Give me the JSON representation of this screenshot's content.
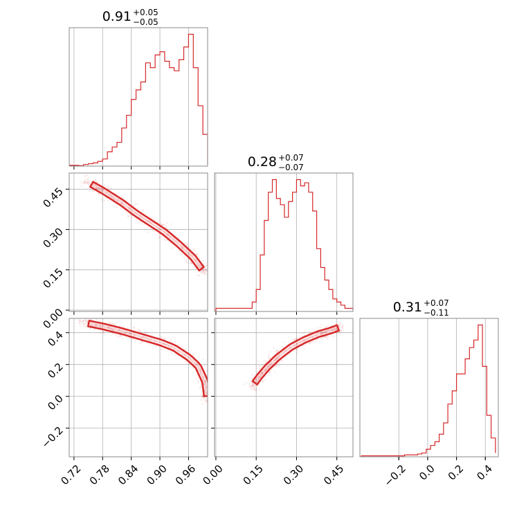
{
  "chart_data": {
    "type": "corner",
    "color": "#d62728",
    "panels": [
      {
        "id": "hist-p0",
        "type": "histogram",
        "title": {
          "median": "0.91",
          "plus": "+0.05",
          "minus": "−0.05"
        },
        "xlim": [
          0.71,
          1.0
        ],
        "grid": true,
        "bin_edges": [
          0.71,
          0.72,
          0.73,
          0.74,
          0.75,
          0.76,
          0.77,
          0.78,
          0.79,
          0.8,
          0.81,
          0.82,
          0.83,
          0.84,
          0.85,
          0.86,
          0.87,
          0.88,
          0.89,
          0.9,
          0.91,
          0.92,
          0.93,
          0.94,
          0.95,
          0.96,
          0.97,
          0.98,
          0.99,
          1.0
        ],
        "counts": [
          0.5,
          0.5,
          0.3,
          1,
          1.5,
          2,
          3,
          4.5,
          9,
          12,
          15,
          24,
          32,
          42,
          48,
          53,
          65,
          62,
          70,
          72,
          66,
          62,
          60,
          67,
          75,
          83,
          62,
          38,
          20,
          1
        ]
      },
      {
        "id": "hist-p1",
        "type": "histogram",
        "title": {
          "median": "0.28",
          "plus": "+0.07",
          "minus": "−0.07"
        },
        "xlim": [
          -0.005,
          0.51
        ],
        "grid": true,
        "bin_edges": [
          0.0,
          0.015,
          0.03,
          0.045,
          0.06,
          0.075,
          0.09,
          0.105,
          0.12,
          0.135,
          0.15,
          0.165,
          0.18,
          0.195,
          0.21,
          0.225,
          0.24,
          0.255,
          0.27,
          0.285,
          0.3,
          0.315,
          0.33,
          0.345,
          0.36,
          0.375,
          0.39,
          0.405,
          0.42,
          0.435,
          0.45,
          0.465,
          0.48,
          0.495,
          0.51
        ],
        "counts": [
          1,
          1,
          1,
          1,
          1,
          1,
          1,
          1,
          1,
          3,
          7,
          18,
          29,
          38,
          42,
          36,
          34,
          30,
          35,
          38,
          42,
          40,
          41,
          38,
          32,
          20,
          14,
          10,
          7,
          4,
          3,
          2,
          1,
          1
        ]
      },
      {
        "id": "hist-p2",
        "type": "histogram",
        "title": {
          "median": "0.31",
          "plus": "+0.07",
          "minus": "−0.11"
        },
        "xlim": [
          -0.47,
          0.49
        ],
        "grid": true,
        "bin_edges": [
          -0.46,
          -0.43,
          -0.4,
          -0.37,
          -0.34,
          -0.31,
          -0.28,
          -0.25,
          -0.22,
          -0.19,
          -0.16,
          -0.13,
          -0.1,
          -0.07,
          -0.04,
          -0.01,
          0.02,
          0.05,
          0.08,
          0.11,
          0.14,
          0.17,
          0.2,
          0.23,
          0.26,
          0.29,
          0.32,
          0.35,
          0.38,
          0.41,
          0.44,
          0.47
        ],
        "counts": [
          0.5,
          0.5,
          0.5,
          0.5,
          0.5,
          0.5,
          0.5,
          0.5,
          0.5,
          0.5,
          1,
          1,
          1,
          1.5,
          2,
          4,
          6,
          8,
          12,
          18,
          28,
          35,
          44,
          44,
          52,
          58,
          62,
          70,
          48,
          22,
          10,
          2
        ]
      },
      {
        "id": "scatter-p0-p1",
        "type": "contour-scatter",
        "xlim": [
          0.71,
          1.0
        ],
        "ylim": [
          -0.005,
          0.51
        ],
        "grid": true,
        "ridge": [
          [
            0.74,
            0.485
          ],
          [
            0.78,
            0.445
          ],
          [
            0.82,
            0.4
          ],
          [
            0.85,
            0.36
          ],
          [
            0.88,
            0.325
          ],
          [
            0.91,
            0.29
          ],
          [
            0.94,
            0.245
          ],
          [
            0.97,
            0.195
          ],
          [
            0.995,
            0.135
          ]
        ],
        "band": [
          0.7,
          0.32
        ]
      },
      {
        "id": "scatter-p0-p2",
        "type": "contour-scatter",
        "xlim": [
          0.71,
          1.0
        ],
        "ylim": [
          -0.38,
          0.49
        ],
        "grid": true,
        "ridge": [
          [
            0.73,
            0.47
          ],
          [
            0.78,
            0.44
          ],
          [
            0.82,
            0.41
          ],
          [
            0.86,
            0.375
          ],
          [
            0.9,
            0.34
          ],
          [
            0.93,
            0.305
          ],
          [
            0.96,
            0.245
          ],
          [
            0.98,
            0.19
          ],
          [
            0.995,
            0.09
          ],
          [
            1.0,
            -0.04
          ]
        ],
        "band": [
          0.5,
          0.32
        ]
      },
      {
        "id": "scatter-p1-p2",
        "type": "contour-scatter",
        "xlim": [
          -0.005,
          0.51
        ],
        "ylim": [
          -0.38,
          0.49
        ],
        "grid": true,
        "ridge": [
          [
            0.13,
            0.05
          ],
          [
            0.16,
            0.12
          ],
          [
            0.19,
            0.18
          ],
          [
            0.23,
            0.245
          ],
          [
            0.28,
            0.31
          ],
          [
            0.33,
            0.355
          ],
          [
            0.38,
            0.39
          ],
          [
            0.43,
            0.415
          ],
          [
            0.47,
            0.44
          ]
        ],
        "band": [
          0.3,
          0.32
        ]
      }
    ],
    "ticks": {
      "x_p0": [
        "0.72",
        "0.78",
        "0.84",
        "0.90",
        "0.96"
      ],
      "x_p1": [
        "0.00",
        "0.15",
        "0.30",
        "0.45"
      ],
      "x_p2": [
        "−0.2",
        "0.0",
        "0.2",
        "0.4"
      ],
      "y_p1": [
        "0.00",
        "0.15",
        "0.30",
        "0.45"
      ],
      "y_p2": [
        "−0.2",
        "0.0",
        "0.2",
        "0.4"
      ]
    },
    "tick_values": {
      "x_p0": [
        0.72,
        0.78,
        0.84,
        0.9,
        0.96
      ],
      "x_p1": [
        0.0,
        0.15,
        0.3,
        0.45
      ],
      "x_p2": [
        -0.2,
        0.0,
        0.2,
        0.4
      ],
      "y_p1": [
        0.0,
        0.15,
        0.3,
        0.45
      ],
      "y_p2": [
        -0.2,
        0.0,
        0.2,
        0.4
      ]
    }
  }
}
